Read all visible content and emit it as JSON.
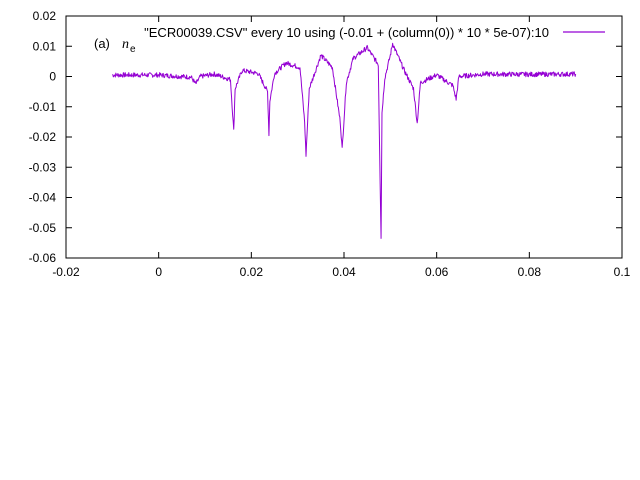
{
  "chart_data": {
    "type": "line",
    "title": "",
    "xlabel": "",
    "ylabel": "",
    "xlim": [
      -0.02,
      0.1
    ],
    "ylim": [
      -0.06,
      0.02
    ],
    "x_ticks": [
      -0.02,
      0,
      0.02,
      0.04,
      0.06,
      0.08,
      0.1
    ],
    "x_tick_labels": [
      "-0.02",
      "0",
      "0.02",
      "0.04",
      "0.06",
      "0.08",
      "0.1"
    ],
    "y_ticks": [
      0.02,
      0.01,
      0,
      -0.01,
      -0.02,
      -0.03,
      -0.04,
      -0.05,
      -0.06
    ],
    "y_tick_labels": [
      "0.02",
      "0.01",
      "0",
      "-0.01",
      "-0.02",
      "-0.03",
      "-0.04",
      "-0.05",
      "-0.06"
    ],
    "grid": false,
    "legend_position": "top-right",
    "annotation": {
      "prefix": "(a)",
      "symbol": "n",
      "subscript": "e"
    },
    "series": [
      {
        "name": "\"ECR00039.CSV\" every 10 using (-0.01 + (column(0)) * 10 * 5e-07):10",
        "color": "#9400d3",
        "x": [
          -0.01,
          0.0,
          0.007,
          0.008,
          0.009,
          0.012,
          0.0155,
          0.0162,
          0.0165,
          0.018,
          0.0215,
          0.0235,
          0.0238,
          0.024,
          0.025,
          0.0275,
          0.0305,
          0.0315,
          0.0318,
          0.0325,
          0.035,
          0.0375,
          0.0392,
          0.0396,
          0.0405,
          0.042,
          0.045,
          0.0474,
          0.0478,
          0.048,
          0.0482,
          0.0488,
          0.05,
          0.0505,
          0.051,
          0.053,
          0.055,
          0.0558,
          0.0565,
          0.06,
          0.0635,
          0.0642,
          0.0648,
          0.07,
          0.08,
          0.09
        ],
        "y": [
          0.0005,
          0.0005,
          -0.0002,
          -0.0025,
          0.0,
          0.0008,
          -0.001,
          -0.018,
          -0.004,
          0.002,
          0.001,
          -0.005,
          -0.019,
          -0.008,
          0.001,
          0.0045,
          0.003,
          -0.015,
          -0.026,
          -0.004,
          0.007,
          0.003,
          -0.015,
          -0.024,
          -0.002,
          0.006,
          0.0095,
          0.004,
          -0.035,
          -0.053,
          -0.012,
          -0.0005,
          0.007,
          0.011,
          0.009,
          0.002,
          -0.004,
          -0.0155,
          -0.002,
          0.0005,
          -0.003,
          -0.0075,
          0.0,
          0.0008,
          0.0007,
          0.0008
        ]
      }
    ]
  }
}
